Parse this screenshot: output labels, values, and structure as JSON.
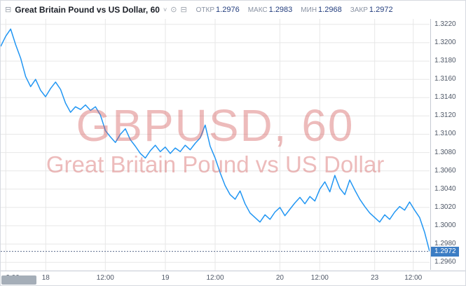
{
  "header": {
    "menu_icon": "⊟",
    "title": "Great Britain Pound vs US Dollar, 60",
    "caret": "˅",
    "icon_1": "⊙",
    "icon_2": "⊟",
    "ohlc": [
      {
        "label": "ОТКР",
        "value": "1.2976"
      },
      {
        "label": "МАКС",
        "value": "1.2983"
      },
      {
        "label": "МИН",
        "value": "1.2968"
      },
      {
        "label": "ЗАКР",
        "value": "1.2972"
      }
    ]
  },
  "watermark": {
    "line1": "GBPUSD, 60",
    "line2": "Great Britain Pound vs US Dollar"
  },
  "price_badge": "1.2972",
  "colors": {
    "line": "#2196f3",
    "grid": "#e7e7e7",
    "watermark": "#d35e5e",
    "badge_bg": "#3c7dc4",
    "last_price_line": "#5b6b8c",
    "axis_text": "#4e5766"
  },
  "chart_data": {
    "type": "line",
    "title": "GBPUSD, 60",
    "subtitle": "Great Britain Pound vs US Dollar",
    "timeframe_minutes": 60,
    "legend_position": "none",
    "grid": true,
    "y_range": [
      1.2951,
      1.3226
    ],
    "y_ticks": [
      1.322,
      1.32,
      1.318,
      1.316,
      1.314,
      1.312,
      1.31,
      1.308,
      1.306,
      1.304,
      1.302,
      1.3,
      1.298,
      1.296
    ],
    "x_ticks": [
      {
        "pos": 0.012,
        "label": "2:00"
      },
      {
        "pos": 0.105,
        "label": "18"
      },
      {
        "pos": 0.244,
        "label": "12:00"
      },
      {
        "pos": 0.384,
        "label": "19"
      },
      {
        "pos": 0.5,
        "label": "12:00"
      },
      {
        "pos": 0.651,
        "label": "20"
      },
      {
        "pos": 0.744,
        "label": "12:00"
      },
      {
        "pos": 0.872,
        "label": "23"
      },
      {
        "pos": 0.962,
        "label": "12:00"
      }
    ],
    "last_price": 1.2972,
    "open": 1.2976,
    "high": 1.2983,
    "low": 1.2968,
    "close": 1.2972,
    "series_name": "GBPUSD",
    "prices": [
      1.3196,
      1.3207,
      1.3215,
      1.3198,
      1.3183,
      1.3163,
      1.3152,
      1.316,
      1.3148,
      1.3141,
      1.315,
      1.3157,
      1.3149,
      1.3134,
      1.3124,
      1.313,
      1.3127,
      1.3132,
      1.3126,
      1.313,
      1.3121,
      1.3104,
      1.3097,
      1.3091,
      1.31,
      1.3106,
      1.3094,
      1.3087,
      1.3079,
      1.3074,
      1.3082,
      1.3088,
      1.3081,
      1.3086,
      1.3079,
      1.3085,
      1.3081,
      1.3088,
      1.3083,
      1.309,
      1.3096,
      1.311,
      1.3087,
      1.3074,
      1.3058,
      1.3044,
      1.3034,
      1.3029,
      1.3038,
      1.3024,
      1.3014,
      1.3009,
      1.3004,
      1.3012,
      1.3007,
      1.3015,
      1.302,
      1.3011,
      1.3018,
      1.3025,
      1.3031,
      1.3024,
      1.3032,
      1.3027,
      1.304,
      1.3048,
      1.3037,
      1.3055,
      1.3041,
      1.3034,
      1.305,
      1.3039,
      1.3029,
      1.3021,
      1.3014,
      1.3009,
      1.3004,
      1.3012,
      1.3007,
      1.3015,
      1.3021,
      1.3017,
      1.3026,
      1.3017,
      1.3009,
      1.2993,
      1.2972
    ]
  }
}
